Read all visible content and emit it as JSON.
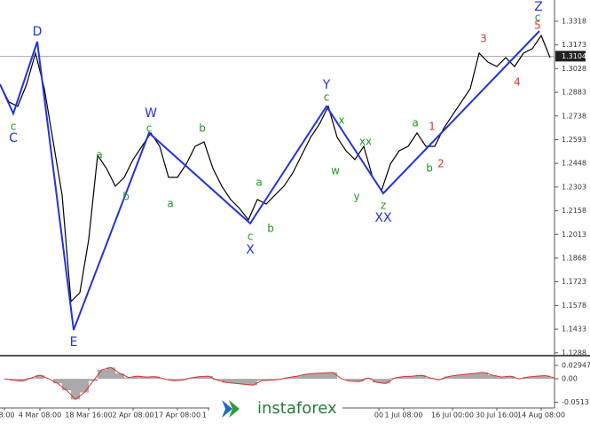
{
  "chart_data": [
    {
      "type": "line",
      "color": "#000000",
      "x": [
        0,
        1,
        2,
        3,
        4,
        5,
        6,
        7,
        8,
        9,
        10,
        11,
        12,
        13,
        14,
        15,
        16,
        17,
        18,
        19,
        20,
        21,
        22,
        23,
        24,
        25,
        26,
        27,
        28,
        29,
        30,
        31,
        32,
        33,
        34,
        35,
        36,
        37,
        38,
        39,
        40,
        41,
        42,
        43,
        44,
        45,
        46,
        47,
        48,
        49,
        50,
        51,
        52,
        53,
        54,
        55,
        56,
        57,
        58,
        59,
        60,
        61,
        62
      ],
      "values": [
        1.2932,
        1.2824,
        1.2797,
        1.2932,
        1.3123,
        1.2905,
        1.2579,
        1.2254,
        1.1602,
        1.1656,
        1.1982,
        1.2498,
        1.2417,
        1.2308,
        1.2362,
        1.2471,
        1.2552,
        1.2634,
        1.2552,
        1.2362,
        1.2362,
        1.2444,
        1.2552,
        1.2579,
        1.2417,
        1.2308,
        1.2226,
        1.2172,
        1.2102,
        1.2226,
        1.2199,
        1.2254,
        1.2308,
        1.2389,
        1.2498,
        1.2607,
        1.2688,
        1.2797,
        1.2607,
        1.2525,
        1.2471,
        1.2552,
        1.2362,
        1.2281,
        1.2444,
        1.2525,
        1.2552,
        1.2634,
        1.2552,
        1.2552,
        1.2661,
        1.2743,
        1.2824,
        1.2905,
        1.3123,
        1.3068,
        1.3041,
        1.3095,
        1.3041,
        1.3123,
        1.315,
        1.3231,
        1.3095
      ],
      "wave": {
        "color": "#2233dd",
        "x": [
          0,
          1.5,
          4.2,
          8.3,
          16.8,
          28.2,
          36.8,
          43.2,
          60.8
        ],
        "values": [
          1.2932,
          1.2753,
          1.3193,
          1.1428,
          1.2634,
          1.208,
          1.2797,
          1.2264,
          1.3258
        ]
      },
      "annotations": [
        {
          "text": "C",
          "x": 1.5,
          "y": 1.2601,
          "color": "#2233dd"
        },
        {
          "text": "c",
          "x": 1.5,
          "y": 1.2672,
          "color": "#229922"
        },
        {
          "text": "D",
          "x": 4.2,
          "y": 1.3253,
          "color": "#2233dd"
        },
        {
          "text": "E",
          "x": 8.3,
          "y": 1.1352,
          "color": "#2233dd"
        },
        {
          "text": "a",
          "x": 11.2,
          "y": 1.2498,
          "color": "#229922"
        },
        {
          "text": "b",
          "x": 14.2,
          "y": 1.2243,
          "color": "#229922"
        },
        {
          "text": "W",
          "x": 17.0,
          "y": 1.2753,
          "color": "#2233dd"
        },
        {
          "text": "c",
          "x": 16.8,
          "y": 1.2661,
          "color": "#229922"
        },
        {
          "text": "b",
          "x": 22.8,
          "y": 1.2661,
          "color": "#229922"
        },
        {
          "text": "a",
          "x": 19.2,
          "y": 1.2199,
          "color": "#229922"
        },
        {
          "text": "a",
          "x": 29.2,
          "y": 1.2329,
          "color": "#229922"
        },
        {
          "text": "c",
          "x": 28.2,
          "y": 1.1997,
          "color": "#229922"
        },
        {
          "text": "X",
          "x": 28.2,
          "y": 1.1917,
          "color": "#2233dd"
        },
        {
          "text": "b",
          "x": 30.5,
          "y": 1.2047,
          "color": "#229922"
        },
        {
          "text": "Y",
          "x": 36.8,
          "y": 1.2927,
          "color": "#2233dd"
        },
        {
          "text": "c",
          "x": 36.8,
          "y": 1.2851,
          "color": "#229922"
        },
        {
          "text": "x",
          "x": 38.5,
          "y": 1.271,
          "color": "#229922"
        },
        {
          "text": "w",
          "x": 37.8,
          "y": 1.24,
          "color": "#229922"
        },
        {
          "text": "xx",
          "x": 41.2,
          "y": 1.258,
          "color": "#229922"
        },
        {
          "text": "y",
          "x": 40.2,
          "y": 1.2243,
          "color": "#229922"
        },
        {
          "text": "z",
          "x": 43.2,
          "y": 1.2189,
          "color": "#229922"
        },
        {
          "text": "XX",
          "x": 43.2,
          "y": 1.2113,
          "color": "#2233dd"
        },
        {
          "text": "a",
          "x": 46.8,
          "y": 1.2694,
          "color": "#229922"
        },
        {
          "text": "1",
          "x": 48.7,
          "y": 1.2672,
          "color": "#e03030"
        },
        {
          "text": "b",
          "x": 48.4,
          "y": 1.2417,
          "color": "#229922"
        },
        {
          "text": "2",
          "x": 49.7,
          "y": 1.2444,
          "color": "#e03030"
        },
        {
          "text": "3",
          "x": 54.5,
          "y": 1.3209,
          "color": "#e03030"
        },
        {
          "text": "4",
          "x": 58.3,
          "y": 1.2943,
          "color": "#e03030"
        },
        {
          "text": "5",
          "x": 60.6,
          "y": 1.3291,
          "color": "#e03030"
        },
        {
          "text": "c",
          "x": 60.6,
          "y": 1.334,
          "color": "#229922"
        },
        {
          "text": "Z",
          "x": 60.7,
          "y": 1.3405,
          "color": "#2233dd"
        }
      ],
      "current_price": 1.3104,
      "xlim": [
        0,
        62.5
      ],
      "ylim": [
        1.1276,
        1.3448
      ],
      "yticks": [
        1.3318,
        1.3173,
        1.3028,
        1.2883,
        1.2738,
        1.2593,
        1.2448,
        1.2303,
        1.2158,
        1.2013,
        1.1868,
        1.1723,
        1.1578,
        1.1433,
        1.1288
      ],
      "xticks": [
        {
          "value": 0.5,
          "label": "08:00"
        },
        {
          "value": 4.5,
          "label": "4 Mar 08:00"
        },
        {
          "value": 10,
          "label": "18 Mar 16:00"
        },
        {
          "value": 15,
          "label": "2 Apr 08:00"
        },
        {
          "value": 20,
          "label": "17 Apr 08:00"
        },
        {
          "value": 23.5,
          "label": "1 M"
        },
        {
          "value": 42.7,
          "label": "00"
        },
        {
          "value": 45.5,
          "label": "1 Jul 08:00"
        },
        {
          "value": 51,
          "label": "16 Jul 00:00"
        },
        {
          "value": 56,
          "label": "30 Jul 16:00"
        },
        {
          "value": 61,
          "label": "14 Aug 08:00"
        }
      ]
    },
    {
      "type": "bar",
      "color": "#aaaaaa",
      "line_color": "#e03030",
      "x": [
        0,
        1,
        2,
        3,
        4,
        5,
        6,
        7,
        8,
        9,
        10,
        11,
        12,
        13,
        14,
        15,
        16,
        17,
        18,
        19,
        20,
        21,
        22,
        23,
        24,
        25,
        26,
        27,
        28,
        29,
        30,
        31,
        32,
        33,
        34,
        35,
        36,
        37,
        38,
        39,
        40,
        41,
        42,
        43,
        44,
        45,
        46,
        47,
        48,
        49,
        50,
        51,
        52,
        53,
        54,
        55,
        56,
        57,
        58,
        59,
        60,
        61,
        62
      ],
      "values": [
        0.0,
        -0.003,
        -0.005,
        0.002,
        0.008,
        0.0,
        -0.01,
        -0.025,
        -0.045,
        -0.03,
        -0.005,
        0.02,
        0.025,
        0.012,
        0.003,
        0.006,
        0.004,
        0.005,
        0.0,
        -0.004,
        -0.003,
        0.002,
        0.005,
        0.006,
        -0.003,
        -0.008,
        -0.01,
        -0.012,
        -0.014,
        -0.004,
        -0.003,
        -0.001,
        0.003,
        0.006,
        0.01,
        0.012,
        0.013,
        0.014,
        0.0,
        -0.005,
        -0.006,
        0.002,
        -0.008,
        -0.01,
        0.002,
        0.005,
        0.006,
        0.008,
        0.002,
        -0.002,
        0.005,
        0.008,
        0.01,
        0.012,
        0.014,
        0.008,
        0.004,
        0.006,
        0.0,
        0.004,
        0.006,
        0.007,
        0.002
      ],
      "xlim": [
        0,
        62.5
      ],
      "ylim": [
        -0.06,
        0.045
      ],
      "yticks": [
        0.02947,
        {
          "value": 0,
          "label": "0.00"
        },
        -0.05131
      ]
    }
  ],
  "watermark": "instaforex"
}
